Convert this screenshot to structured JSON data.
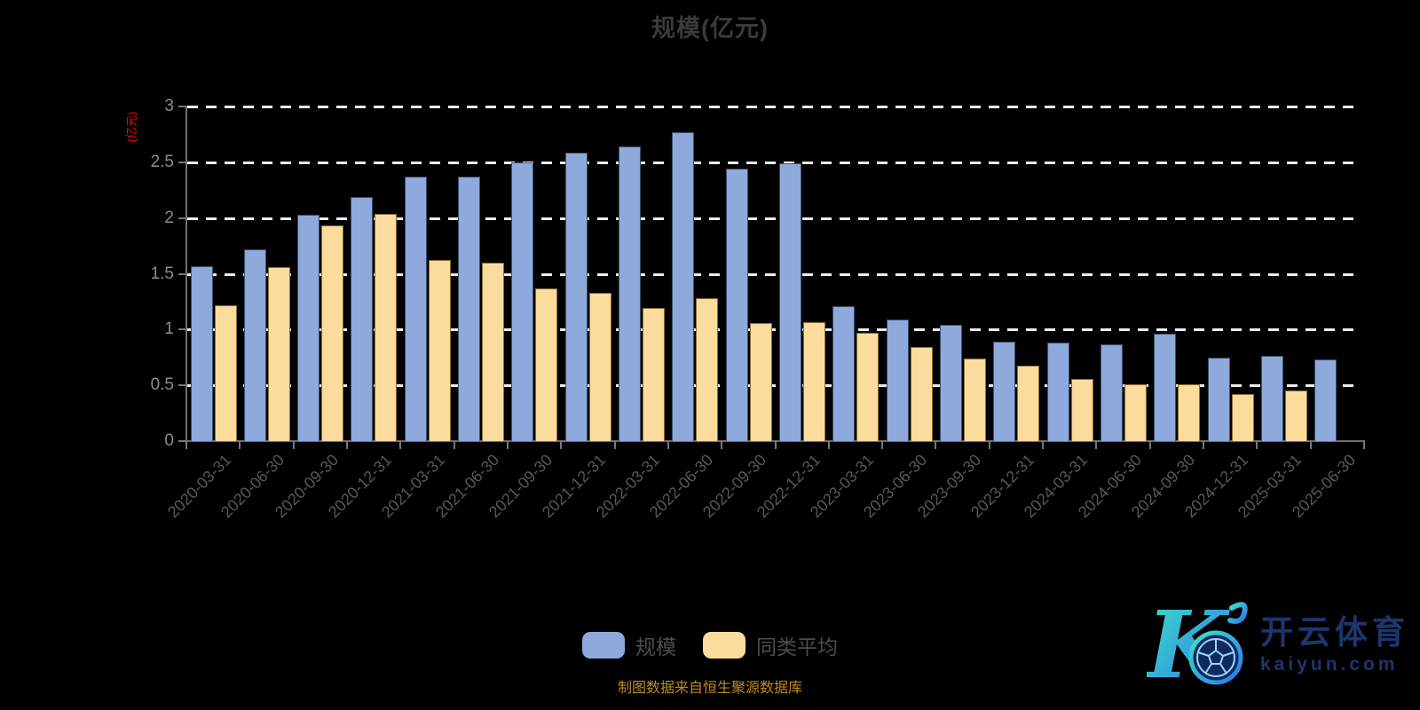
{
  "title": "规模(亿元)",
  "source_note": "制图数据来自恒生聚源数据库",
  "legend": {
    "items": [
      {
        "label": "规模",
        "color": "#8EA9DB"
      },
      {
        "label": "同类平均",
        "color": "#FCDC9C"
      }
    ]
  },
  "brand": {
    "name": "开云体育",
    "domain": "kaiyun.com",
    "text_color": "#1B366E",
    "gradient_start": "#3CE5C4",
    "gradient_end": "#2E72EE"
  },
  "colors": {
    "background": "#000000",
    "title": "#3A3A3A",
    "grid": "#ECECEC",
    "axis": "#6E6E6E",
    "y_axis_name": "#FF0000",
    "y_tick_label": "#8C8C8C",
    "x_tick_label": "#575757",
    "source_note": "#BD8B1E"
  },
  "chart_data": {
    "type": "bar",
    "title": "规模(亿元)",
    "xlabel": "",
    "ylabel": "(亿元)",
    "ylim": [
      0,
      3
    ],
    "y_tick_labels": [
      "0",
      "0.5",
      "1",
      "1.5",
      "2",
      "2.5",
      "3"
    ],
    "grid": "dashed-horizontal",
    "legend_position": "bottom-center",
    "categories": [
      "2020-03-31",
      "2020-06-30",
      "2020-09-30",
      "2020-12-31",
      "2021-03-31",
      "2021-06-30",
      "2021-09-30",
      "2021-12-31",
      "2022-03-31",
      "2022-06-30",
      "2022-09-30",
      "2022-12-31",
      "2023-03-31",
      "2023-06-30",
      "2023-09-30",
      "2023-12-31",
      "2024-03-31",
      "2024-06-30",
      "2024-09-30",
      "2024-12-31",
      "2025-03-31",
      "2025-06-30"
    ],
    "series": [
      {
        "name": "规模",
        "color": "#8EA9DB",
        "border_color": "#3C4F6E",
        "values": [
          1.57,
          1.72,
          2.03,
          2.19,
          2.37,
          2.37,
          2.5,
          2.59,
          2.64,
          2.77,
          2.44,
          2.49,
          1.21,
          1.09,
          1.04,
          0.89,
          0.88,
          0.87,
          0.96,
          0.75,
          0.76,
          0.73
        ]
      },
      {
        "name": "同类平均",
        "color": "#FCDC9C",
        "border_color": "#8C6D33",
        "values": [
          1.22,
          1.56,
          1.93,
          2.04,
          1.62,
          1.6,
          1.37,
          1.33,
          1.19,
          1.28,
          1.06,
          1.07,
          0.97,
          0.84,
          0.74,
          0.68,
          0.56,
          0.51,
          0.51,
          0.42,
          0.45,
          null
        ]
      }
    ]
  }
}
